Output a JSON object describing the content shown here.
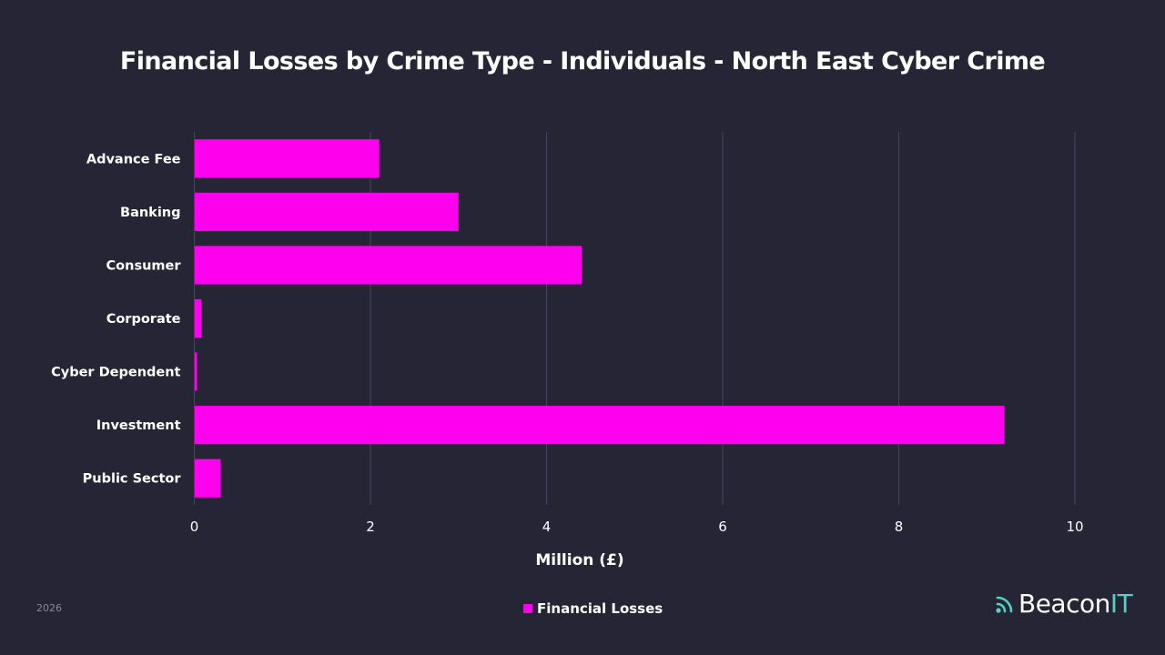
{
  "chart_data": {
    "type": "bar",
    "orientation": "horizontal",
    "title": "Financial Losses by Crime Type - Individuals - North East Cyber Crime",
    "xlabel": "Million (£)",
    "ylabel": "",
    "categories": [
      "Advance Fee",
      "Banking",
      "Consumer",
      "Corporate",
      "Cyber Dependent",
      "Investment",
      "Public Sector"
    ],
    "series": [
      {
        "name": "Financial Losses",
        "values": [
          2.1,
          3.0,
          4.4,
          0.08,
          0.03,
          9.2,
          0.3
        ],
        "color": "#ff00ee"
      }
    ],
    "xlim": [
      0,
      10
    ],
    "xticks": [
      "0",
      "2",
      "4",
      "6",
      "8",
      "10"
    ],
    "grid": true,
    "legend_position": "bottom"
  },
  "footer": {
    "year": "2026"
  },
  "brand": {
    "name_part1": "Beacon",
    "name_part2": "IT",
    "icon": "wifi-signal-icon",
    "accent_color": "#4fd1c5"
  }
}
